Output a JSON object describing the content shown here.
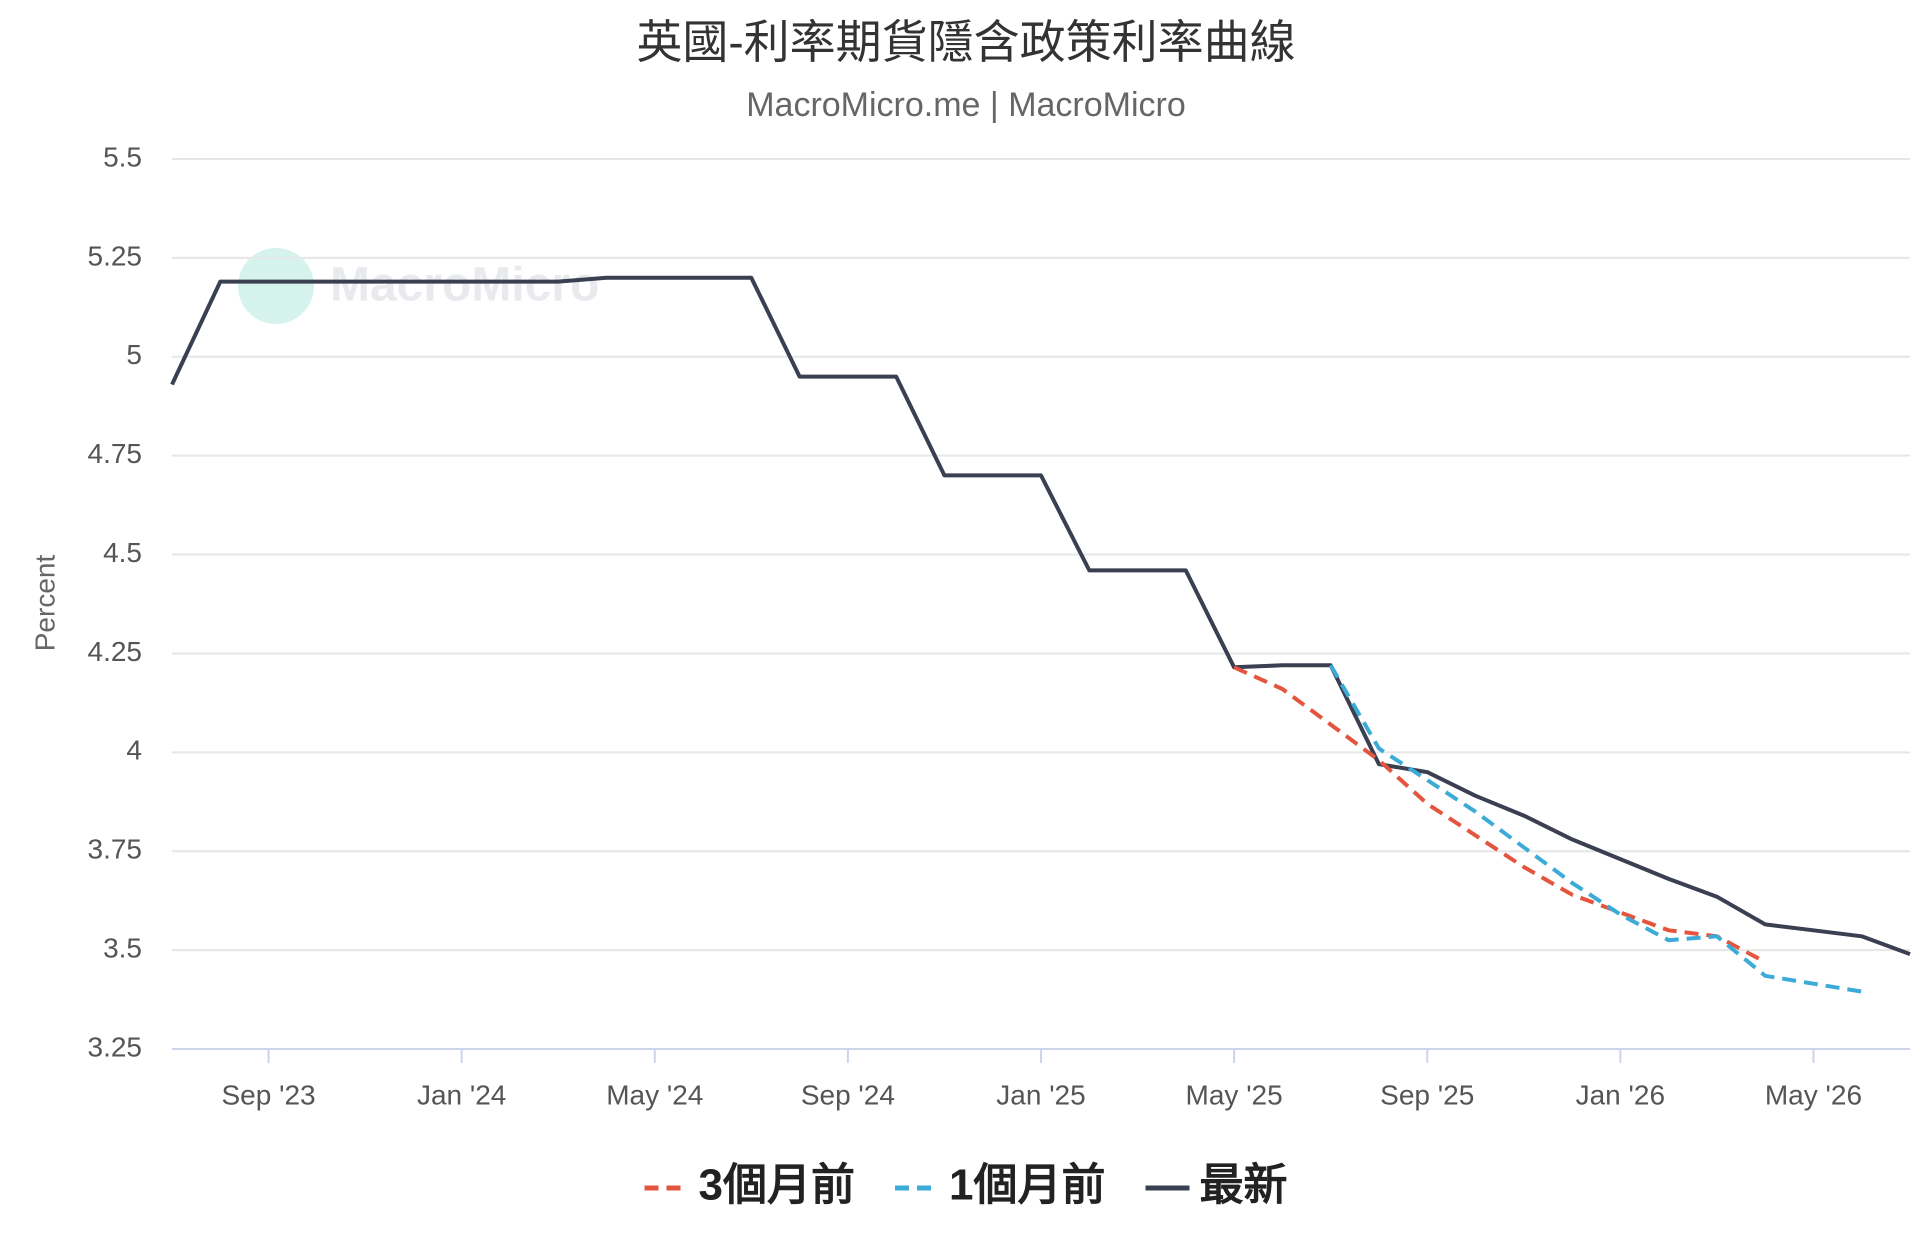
{
  "chart_data": {
    "type": "line",
    "title": "英國-利率期貨隱含政策利率曲線",
    "subtitle": "MacroMicro.me | MacroMicro",
    "watermark": "MacroMicro",
    "y_label": "Percent",
    "x": [
      "2023-07",
      "2023-08",
      "2023-09",
      "2023-10",
      "2023-11",
      "2023-12",
      "2024-01",
      "2024-02",
      "2024-03",
      "2024-04",
      "2024-05",
      "2024-06",
      "2024-07",
      "2024-08",
      "2024-09",
      "2024-10",
      "2024-11",
      "2024-12",
      "2025-01",
      "2025-02",
      "2025-03",
      "2025-04",
      "2025-05",
      "2025-06",
      "2025-07",
      "2025-08",
      "2025-09",
      "2025-10",
      "2025-11",
      "2025-12",
      "2026-01",
      "2026-02",
      "2026-03",
      "2026-04",
      "2026-05",
      "2026-06",
      "2026-07"
    ],
    "series": [
      {
        "name": "3個月前",
        "color": "#e4553f",
        "dash": true,
        "values": [
          null,
          null,
          null,
          null,
          null,
          null,
          null,
          null,
          null,
          null,
          null,
          null,
          null,
          null,
          null,
          null,
          null,
          null,
          null,
          null,
          null,
          null,
          4.215,
          4.16,
          4.07,
          3.98,
          3.87,
          3.79,
          3.71,
          3.64,
          3.595,
          3.55,
          3.535,
          3.47,
          null,
          null,
          null
        ]
      },
      {
        "name": "1個月前",
        "color": "#3cabd8",
        "dash": true,
        "values": [
          null,
          null,
          null,
          null,
          null,
          null,
          null,
          null,
          null,
          null,
          null,
          null,
          null,
          null,
          null,
          null,
          null,
          null,
          null,
          null,
          null,
          null,
          null,
          null,
          4.22,
          4.01,
          3.93,
          3.85,
          3.76,
          3.67,
          3.59,
          3.525,
          3.535,
          3.435,
          3.415,
          3.395,
          null
        ]
      },
      {
        "name": "最新",
        "color": "#3a3f51",
        "dash": false,
        "values": [
          4.93,
          5.19,
          5.19,
          5.19,
          5.19,
          5.19,
          5.19,
          5.19,
          5.19,
          5.2,
          5.2,
          5.2,
          5.2,
          4.95,
          4.95,
          4.95,
          4.7,
          4.7,
          4.7,
          4.46,
          4.46,
          4.46,
          4.215,
          4.22,
          4.22,
          3.97,
          3.95,
          3.89,
          3.84,
          3.78,
          3.73,
          3.68,
          3.635,
          3.565,
          3.55,
          3.535,
          3.49
        ]
      }
    ],
    "xlim": [
      "2023-07",
      "2026-07"
    ],
    "xticks": [
      {
        "value": "2023-09",
        "label": "Sep '23"
      },
      {
        "value": "2024-01",
        "label": "Jan '24"
      },
      {
        "value": "2024-05",
        "label": "May '24"
      },
      {
        "value": "2024-09",
        "label": "Sep '24"
      },
      {
        "value": "2025-01",
        "label": "Jan '25"
      },
      {
        "value": "2025-05",
        "label": "May '25"
      },
      {
        "value": "2025-09",
        "label": "Sep '25"
      },
      {
        "value": "2026-01",
        "label": "Jan '26"
      },
      {
        "value": "2026-05",
        "label": "May '26"
      }
    ],
    "ylim": [
      3.25,
      5.5
    ],
    "yticks": [
      3.25,
      3.5,
      3.75,
      4,
      4.25,
      4.5,
      4.75,
      5,
      5.25,
      5.5
    ],
    "grid": true,
    "legend": "bottom"
  }
}
